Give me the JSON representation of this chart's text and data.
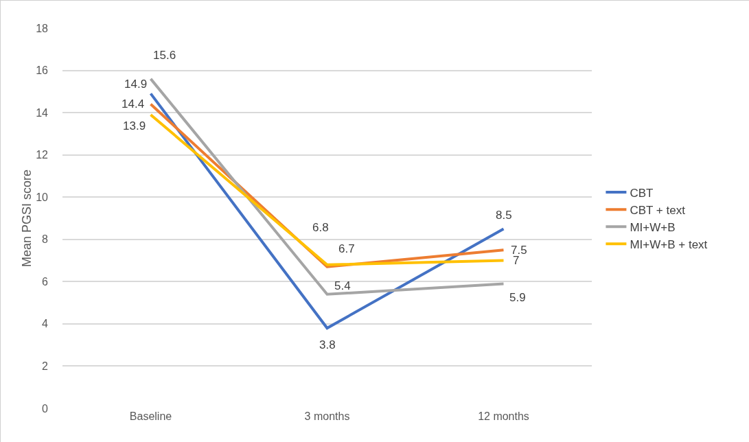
{
  "chart_data": {
    "type": "line",
    "ylabel": "Mean PGSI score",
    "categories": [
      "Baseline",
      "3 months",
      "12 months"
    ],
    "series": [
      {
        "name": "CBT",
        "color": "#4472c4",
        "values": [
          14.9,
          3.8,
          8.5
        ]
      },
      {
        "name": "CBT + text",
        "color": "#ed7d31",
        "values": [
          14.4,
          6.7,
          7.5
        ]
      },
      {
        "name": "MI+W+B",
        "color": "#a5a5a5",
        "values": [
          15.6,
          5.4,
          5.9
        ]
      },
      {
        "name": "MI+W+B + text",
        "color": "#ffc000",
        "values": [
          13.9,
          6.8,
          7
        ]
      }
    ],
    "ylim": [
      0,
      18
    ],
    "yticks": [
      0,
      2,
      4,
      6,
      8,
      10,
      12,
      14,
      16,
      18
    ],
    "grid": "y",
    "legend": "right",
    "data_labels": true,
    "line_style": "solid"
  }
}
